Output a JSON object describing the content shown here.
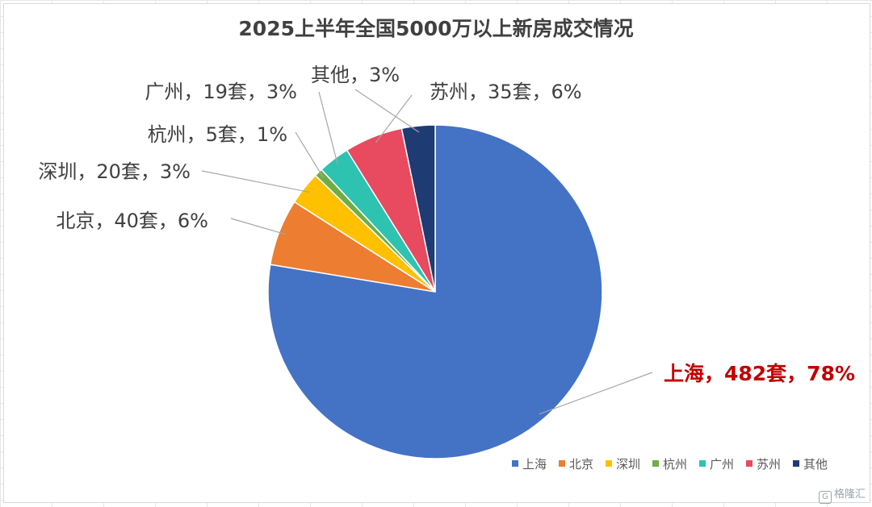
{
  "chart_data": {
    "type": "pie",
    "title": "2025上半年全国5000万以上新房成交情况",
    "slices": [
      {
        "name": "上海",
        "value": 482,
        "percent": 78,
        "color": "#4472C4",
        "label": "上海，482套，78%",
        "highlight": true
      },
      {
        "name": "北京",
        "value": 40,
        "percent": 6,
        "color": "#ED7D31",
        "label": "北京，40套，6%"
      },
      {
        "name": "深圳",
        "value": 20,
        "percent": 3,
        "color": "#FFC000",
        "label": "深圳，20套，3%"
      },
      {
        "name": "杭州",
        "value": 5,
        "percent": 1,
        "color": "#70AD47",
        "label": "杭州，5套，1%"
      },
      {
        "name": "广州",
        "value": 19,
        "percent": 3,
        "color": "#2EC2B1",
        "label": "广州，19套，3%"
      },
      {
        "name": "苏州",
        "value": 35,
        "percent": 6,
        "color": "#E84A5F",
        "label": "苏州，35套，6%"
      },
      {
        "name": "其他",
        "value": 20,
        "percent": 3,
        "color": "#1F3B73",
        "label": "其他，3%"
      }
    ],
    "legend_position": "bottom-right"
  },
  "watermark": "格隆汇"
}
